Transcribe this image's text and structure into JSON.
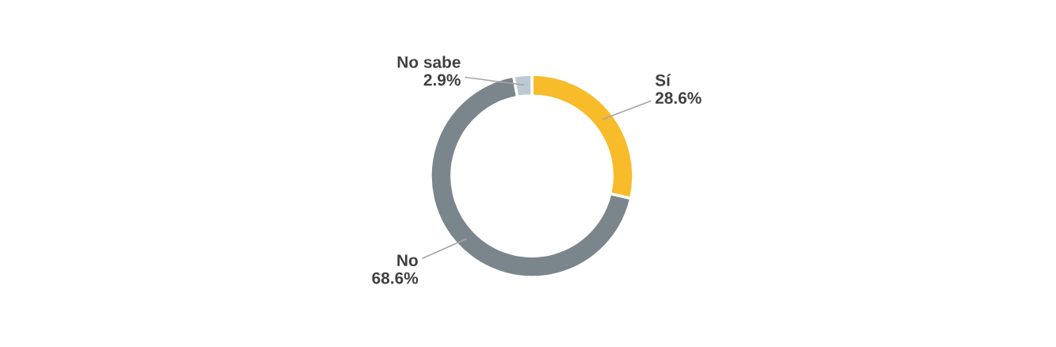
{
  "chart_data": {
    "type": "donut",
    "categories": [
      "Sí",
      "No",
      "No sabe"
    ],
    "values": [
      28.6,
      68.6,
      2.9
    ],
    "colors": [
      "#f8bb2a",
      "#7b868c",
      "#bccbd3"
    ],
    "value_labels": [
      "28.6%",
      "68.6%",
      "2.9%"
    ]
  }
}
